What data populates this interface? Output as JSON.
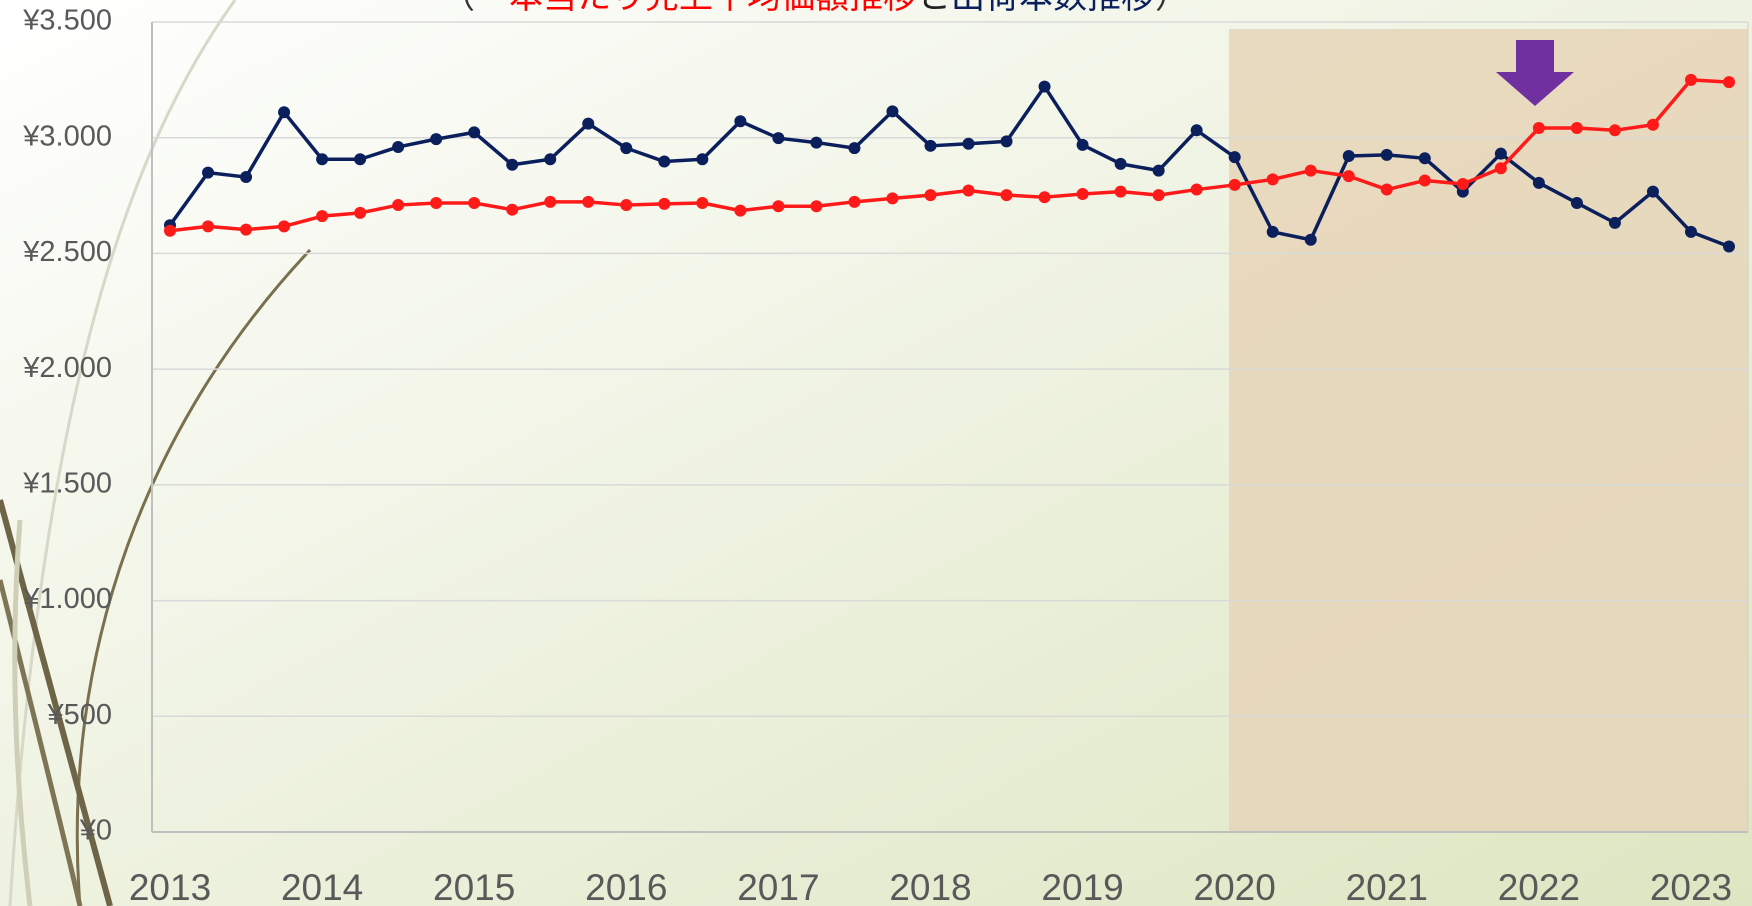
{
  "chart_data": {
    "type": "line",
    "title_parts": [
      "（",
      "一本当たり売上平均価額推移",
      "と",
      "出荷本数推移",
      "）"
    ],
    "title_colors": [
      "#333333",
      "#ff0000",
      "#222222",
      "#0b1f5c",
      "#333333"
    ],
    "categories": [
      "2013",
      null,
      null,
      null,
      "2014",
      null,
      null,
      null,
      "2015",
      null,
      null,
      null,
      "2016",
      null,
      null,
      null,
      "2017",
      null,
      null,
      null,
      "2018",
      null,
      null,
      null,
      "2019",
      null,
      null,
      null,
      "2020",
      null,
      null,
      null,
      "2021",
      null,
      null,
      null,
      "2022",
      null,
      null,
      null,
      "2023",
      null
    ],
    "series": [
      {
        "color": "#ff1a1a",
        "values": [
          2598,
          2617,
          2603,
          2617,
          2661,
          2675,
          2709,
          2718,
          2718,
          2689,
          2723,
          2723,
          2709,
          2714,
          2718,
          2685,
          2704,
          2704,
          2723,
          2738,
          2752,
          2772,
          2752,
          2743,
          2757,
          2767,
          2752,
          2776,
          2796,
          2820,
          2858,
          2834,
          2776,
          2815,
          2800,
          2868,
          3042,
          3042,
          3032,
          3056,
          3250,
          3240
        ]
      },
      {
        "color": "#0b1f5c",
        "values": [
          2622,
          2849,
          2830,
          3110,
          2907,
          2907,
          2960,
          2994,
          3023,
          2883,
          2907,
          3061,
          2955,
          2897,
          2907,
          3071,
          2998,
          2979,
          2955,
          3114,
          2965,
          2974,
          2984,
          3221,
          2969,
          2887,
          2858,
          3032,
          2916,
          2593,
          2559,
          2921,
          2926,
          2911,
          2767,
          2931,
          2805,
          2718,
          2632,
          2767,
          2593,
          2530
        ]
      }
    ],
    "ylim": [
      0,
      3500
    ],
    "yticks": [
      {
        "value": 0,
        "label": "¥0"
      },
      {
        "value": 500,
        "label": "¥500"
      },
      {
        "value": 1000,
        "label": "¥1.000"
      },
      {
        "value": 1500,
        "label": "¥1.500"
      },
      {
        "value": 2000,
        "label": "¥2.000"
      },
      {
        "value": 2500,
        "label": "¥2.500"
      },
      {
        "value": 3000,
        "label": "¥3.000"
      },
      {
        "value": 3500,
        "label": "¥3.500"
      }
    ],
    "grid": true
  }
}
